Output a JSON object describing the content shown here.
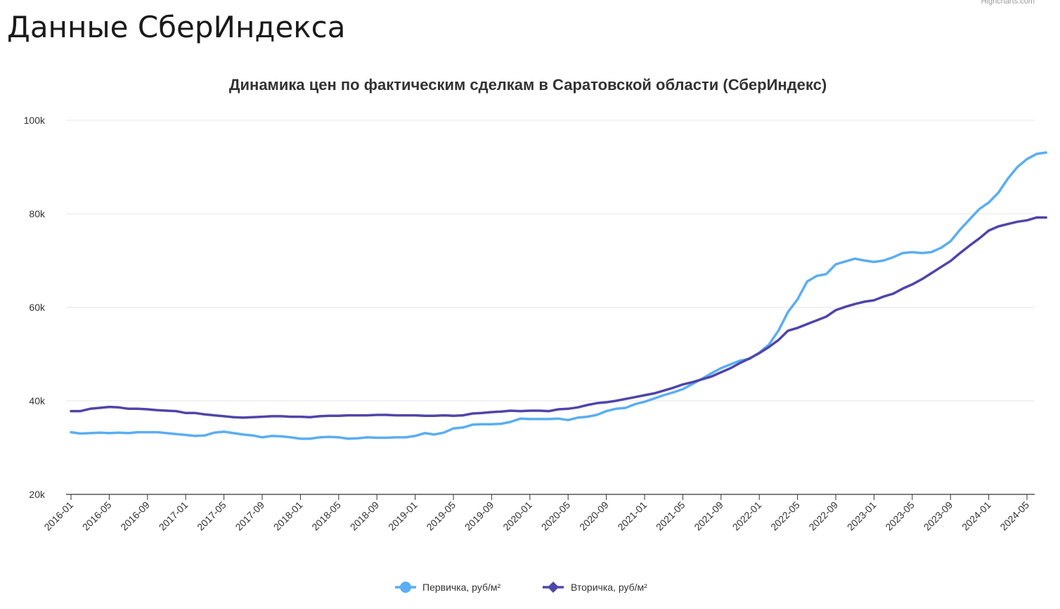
{
  "page": {
    "heading": "Данные СберИндекса",
    "credits": "Highcharts.com"
  },
  "chart_data": {
    "type": "line",
    "title": "Динамика цен по фактическим сделкам в Саратовской области (СберИндекс)",
    "xlabel": "",
    "ylabel": "",
    "ylim": [
      20000,
      100000
    ],
    "y_ticks": [
      20000,
      40000,
      60000,
      80000,
      100000
    ],
    "y_tick_labels": [
      "20k",
      "40k",
      "60k",
      "80k",
      "100k"
    ],
    "x_tick_labels": [
      "2016-01",
      "2016-05",
      "2016-09",
      "2017-01",
      "2017-05",
      "2017-09",
      "2018-01",
      "2018-05",
      "2018-09",
      "2019-01",
      "2019-05",
      "2019-09",
      "2020-01",
      "2020-05",
      "2020-09",
      "2021-01",
      "2021-05",
      "2021-09",
      "2022-01",
      "2022-05",
      "2022-09",
      "2023-01",
      "2023-05",
      "2023-09",
      "2024-01",
      "2024-05"
    ],
    "x_start": "2016-01",
    "x_end": "2024-06",
    "grid": true,
    "legend_position": "bottom-center",
    "series": [
      {
        "name": "Первичка, руб/м²",
        "color": "#5aaef2",
        "marker": "circle",
        "values": [
          33300,
          33000,
          33100,
          33200,
          33100,
          33200,
          33100,
          33300,
          33300,
          33300,
          33100,
          32900,
          32700,
          32500,
          32600,
          33200,
          33400,
          33100,
          32800,
          32600,
          32200,
          32500,
          32400,
          32200,
          31900,
          31900,
          32200,
          32300,
          32200,
          31900,
          32000,
          32200,
          32100,
          32100,
          32200,
          32200,
          32500,
          33100,
          32800,
          33200,
          34100,
          34300,
          34900,
          35000,
          35000,
          35100,
          35500,
          36200,
          36100,
          36100,
          36100,
          36200,
          35900,
          36400,
          36600,
          37000,
          37800,
          38300,
          38500,
          39300,
          39800,
          40500,
          41200,
          41800,
          42500,
          43600,
          44700,
          45900,
          47000,
          47800,
          48600,
          49000,
          50300,
          52000,
          55000,
          59000,
          61700,
          65500,
          66700,
          67100,
          69200,
          69800,
          70400,
          70000,
          69700,
          70000,
          70700,
          71600,
          71800,
          71600,
          71800,
          72700,
          74100,
          76600,
          78800,
          81000,
          82400,
          84500,
          87500,
          90000,
          91700,
          92800,
          93100
        ]
      },
      {
        "name": "Вторичка, руб/м²",
        "color": "#5045aa",
        "marker": "diamond",
        "values": [
          37800,
          37800,
          38300,
          38500,
          38700,
          38600,
          38300,
          38300,
          38200,
          38000,
          37900,
          37800,
          37400,
          37400,
          37100,
          36900,
          36700,
          36500,
          36400,
          36500,
          36600,
          36700,
          36700,
          36600,
          36600,
          36500,
          36700,
          36800,
          36800,
          36900,
          36900,
          36900,
          37000,
          37000,
          36900,
          36900,
          36900,
          36800,
          36800,
          36900,
          36800,
          36900,
          37300,
          37400,
          37600,
          37700,
          37900,
          37800,
          37900,
          37900,
          37800,
          38200,
          38300,
          38600,
          39100,
          39500,
          39700,
          40000,
          40400,
          40800,
          41200,
          41600,
          42200,
          42800,
          43500,
          44000,
          44600,
          45200,
          46100,
          47000,
          48100,
          49100,
          50200,
          51500,
          53000,
          55000,
          55600,
          56400,
          57200,
          58000,
          59400,
          60100,
          60700,
          61200,
          61500,
          62300,
          62900,
          64000,
          64900,
          66000,
          67300,
          68600,
          69900,
          71600,
          73200,
          74700,
          76400,
          77300,
          77800,
          78300,
          78600,
          79200,
          79200
        ]
      }
    ]
  }
}
